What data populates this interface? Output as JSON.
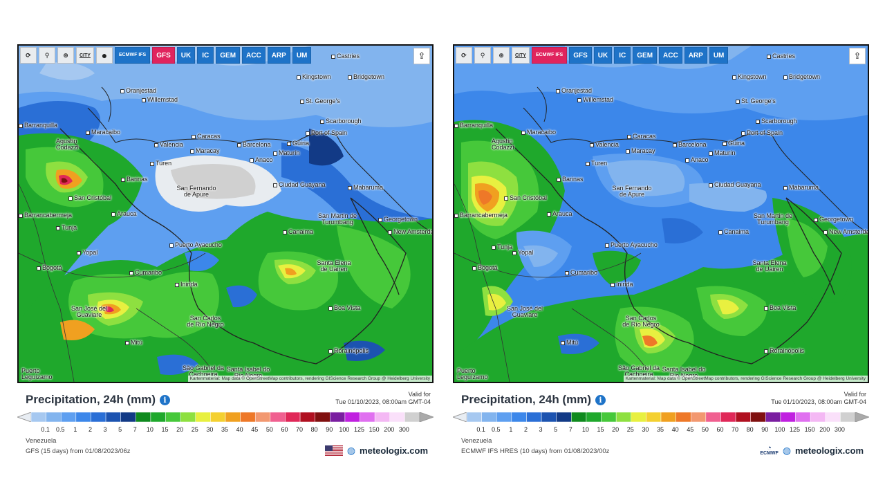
{
  "panels": [
    {
      "toolbar": {
        "refresh": "refresh-icon",
        "location": "location-pin-icon",
        "zoom": "zoom-icon",
        "city_label": "CITY",
        "dot": "dot-icon",
        "models": [
          "ECMWF IFS",
          "GFS",
          "UK",
          "IC",
          "GEM",
          "ACC",
          "ARP",
          "UM"
        ],
        "active_model": "GFS"
      },
      "attribution": "Kartenmaterial: Map data © OpenStreetMap contributors, rendering GIScience Research Group @ Heidelberg University",
      "title": "Precipitation, 24h (mm)",
      "valid_label": "Valid for",
      "valid_time": "Tue 01/10/2023, 08:00am GMT-04",
      "region": "Venezuela",
      "source": "GFS (15 days) from 01/08/2023/06z",
      "brand": "meteologix.com",
      "flag": "us-flag-icon"
    },
    {
      "toolbar": {
        "refresh": "refresh-icon",
        "location": "location-pin-icon",
        "zoom": "zoom-icon",
        "city_label": "CITY",
        "models": [
          "ECMWF IFS",
          "GFS",
          "UK",
          "IC",
          "GEM",
          "ACC",
          "ARP",
          "UM"
        ],
        "active_model": "ECMWF IFS"
      },
      "attribution": "Kartenmaterial: Map data © OpenStreetMap contributors, rendering GIScience Research Group @ Heidelberg University",
      "title": "Precipitation, 24h (mm)",
      "valid_label": "Valid for",
      "valid_time": "Tue 01/10/2023, 08:00am GMT-04",
      "region": "Venezuela",
      "source": "ECMWF IFS HRES (10 days) from 01/08/2023/00z",
      "brand": "meteologix.com",
      "ecmwf_logo": "ECMWF"
    }
  ],
  "cities": [
    "Castries",
    "Kingstown",
    "Bridgetown",
    "Oranjestad",
    "Willemstad",
    "St. George's",
    "Barranquilla",
    "Maracaibo",
    "Scarborough",
    "Port of Spain",
    "Caracas",
    "Valencia",
    "Maracay",
    "Barcelona",
    "Güiria",
    "Maturín",
    "Agustín Codazzi",
    "Turen",
    "Anaco",
    "Ciudad Guayana",
    "Barinas",
    "San Fernando de Apure",
    "Mabaruma",
    "San Cristóbal",
    "Barrancabermeja",
    "Arauca",
    "Canaima",
    "San Martin de Turumbang",
    "Georgetown",
    "New Amsterdam",
    "Tunja",
    "Yopal",
    "Puerto Ayacucho",
    "Bogotá",
    "Cumaribo",
    "Santa Elena de Uairen",
    "Inirida",
    "San José del Guaviare",
    "Boa Vista",
    "San Carlos de Río Negro",
    "Mitú",
    "Rorainópolis",
    "São Gabriel da Cachoeira",
    "Santa Isabel do Rio Negro",
    "Puerto Leguízamo"
  ],
  "scale": {
    "labels": [
      "0.1",
      "0.5",
      "1",
      "2",
      "3",
      "5",
      "7",
      "10",
      "15",
      "20",
      "25",
      "30",
      "35",
      "40",
      "45",
      "50",
      "60",
      "70",
      "80",
      "90",
      "100",
      "125",
      "150",
      "200",
      "300"
    ],
    "colors": [
      "#a6c8f0",
      "#82b4ee",
      "#5e9ff0",
      "#3c87ea",
      "#2a6fd6",
      "#1c53b0",
      "#123a86",
      "#0f8a1e",
      "#1fa82c",
      "#46c83a",
      "#8ee040",
      "#e8f040",
      "#f4d030",
      "#f0a020",
      "#ee7828",
      "#f29870",
      "#f06090",
      "#e02858",
      "#b01020",
      "#801010",
      "#7a1ea0",
      "#c020e0",
      "#e070f0",
      "#f4b8f4",
      "#fae0fa",
      "#d0d0d0"
    ]
  }
}
